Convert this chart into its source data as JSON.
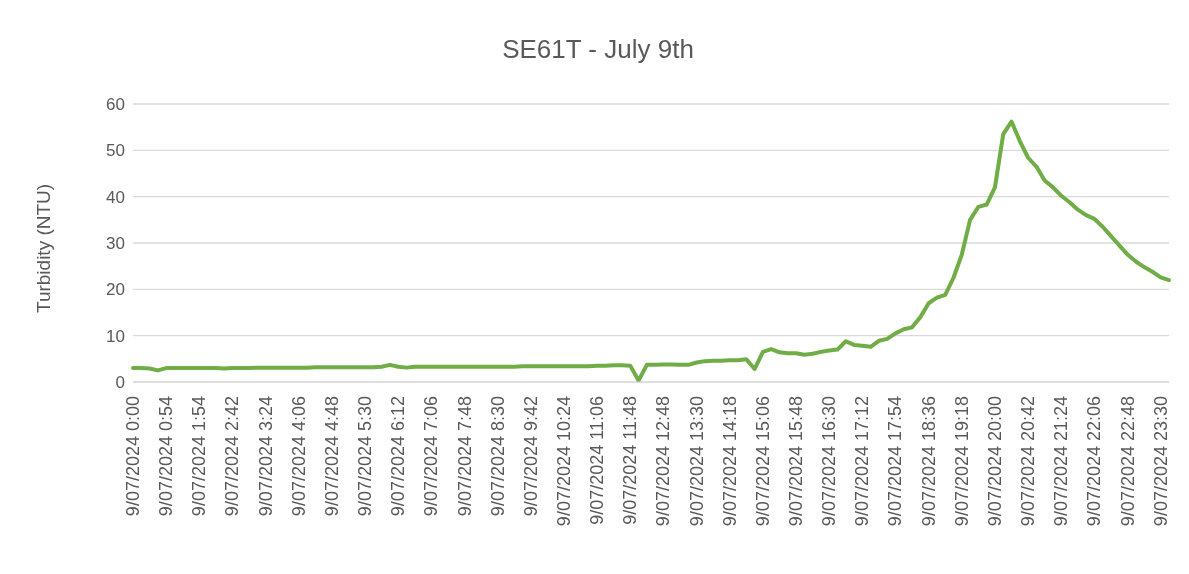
{
  "chart_data": {
    "type": "line",
    "title": "SE61T - July 9th",
    "ylabel": "Turbidity (NTU)",
    "categories": [
      "9/07/2024 0:00",
      null,
      null,
      null,
      "9/07/2024 0:54",
      null,
      null,
      null,
      "9/07/2024 1:54",
      null,
      null,
      null,
      "9/07/2024 2:42",
      null,
      null,
      null,
      "9/07/2024 3:24",
      null,
      null,
      null,
      "9/07/2024 4:06",
      null,
      null,
      null,
      "9/07/2024 4:48",
      null,
      null,
      null,
      "9/07/2024 5:30",
      null,
      null,
      null,
      "9/07/2024 6:12",
      null,
      null,
      null,
      "9/07/2024 7:06",
      null,
      null,
      null,
      "9/07/2024 7:48",
      null,
      null,
      null,
      "9/07/2024 8:30",
      null,
      null,
      null,
      "9/07/2024 9:42",
      null,
      null,
      null,
      "9/07/2024 10:24",
      null,
      null,
      null,
      "9/07/2024 11:06",
      null,
      null,
      null,
      "9/07/2024 11:48",
      null,
      null,
      null,
      "9/07/2024 12:48",
      null,
      null,
      null,
      "9/07/2024 13:30",
      null,
      null,
      null,
      "9/07/2024 14:18",
      null,
      null,
      null,
      "9/07/2024 15:06",
      null,
      null,
      null,
      "9/07/2024 15:48",
      null,
      null,
      null,
      "9/07/2024 16:30",
      null,
      null,
      null,
      "9/07/2024 17:12",
      null,
      null,
      null,
      "9/07/2024 17:54",
      null,
      null,
      null,
      "9/07/2024 18:36",
      null,
      null,
      null,
      "9/07/2024 19:18",
      null,
      null,
      null,
      "9/07/2024 20:00",
      null,
      null,
      null,
      "9/07/2024 20:42",
      null,
      null,
      null,
      "9/07/2024 21:24",
      null,
      null,
      null,
      "9/07/2024 22:06",
      null,
      null,
      null,
      "9/07/2024 22:48",
      null,
      null,
      null,
      "9/07/2024 23:30",
      null
    ],
    "series": [
      {
        "color": "#70ad47",
        "values": [
          3.0,
          3.0,
          2.9,
          2.5,
          3.0,
          3.0,
          3.0,
          3.0,
          3.0,
          3.0,
          3.0,
          2.9,
          3.0,
          3.0,
          3.0,
          3.1,
          3.1,
          3.1,
          3.1,
          3.1,
          3.1,
          3.1,
          3.2,
          3.2,
          3.2,
          3.2,
          3.2,
          3.2,
          3.2,
          3.2,
          3.3,
          3.7,
          3.3,
          3.1,
          3.3,
          3.3,
          3.3,
          3.3,
          3.3,
          3.3,
          3.3,
          3.3,
          3.3,
          3.3,
          3.3,
          3.3,
          3.3,
          3.4,
          3.4,
          3.4,
          3.4,
          3.4,
          3.4,
          3.4,
          3.4,
          3.4,
          3.5,
          3.5,
          3.6,
          3.6,
          3.5,
          0.3,
          3.7,
          3.7,
          3.8,
          3.8,
          3.7,
          3.7,
          4.2,
          4.5,
          4.6,
          4.6,
          4.7,
          4.7,
          4.9,
          2.8,
          6.5,
          7.1,
          6.4,
          6.2,
          6.2,
          5.9,
          6.1,
          6.5,
          6.8,
          7.0,
          8.8,
          8.0,
          7.8,
          7.6,
          8.9,
          9.3,
          10.5,
          11.4,
          11.8,
          14.0,
          17.0,
          18.2,
          18.8,
          22.5,
          27.5,
          35,
          37.8,
          38.3,
          42,
          53.5,
          56.2,
          52,
          48.4,
          46.5,
          43.5,
          42.0,
          40.2,
          38.8,
          37.2,
          36.0,
          35.2,
          33.5,
          31.5,
          29.5,
          27.5,
          26.0,
          24.8,
          23.8,
          22.6,
          22.0
        ]
      }
    ],
    "ylim": [
      0,
      60
    ],
    "yticks": [
      0,
      10,
      20,
      30,
      40,
      50,
      60
    ],
    "grid": "y",
    "marker": "none",
    "line_style": "solid"
  }
}
